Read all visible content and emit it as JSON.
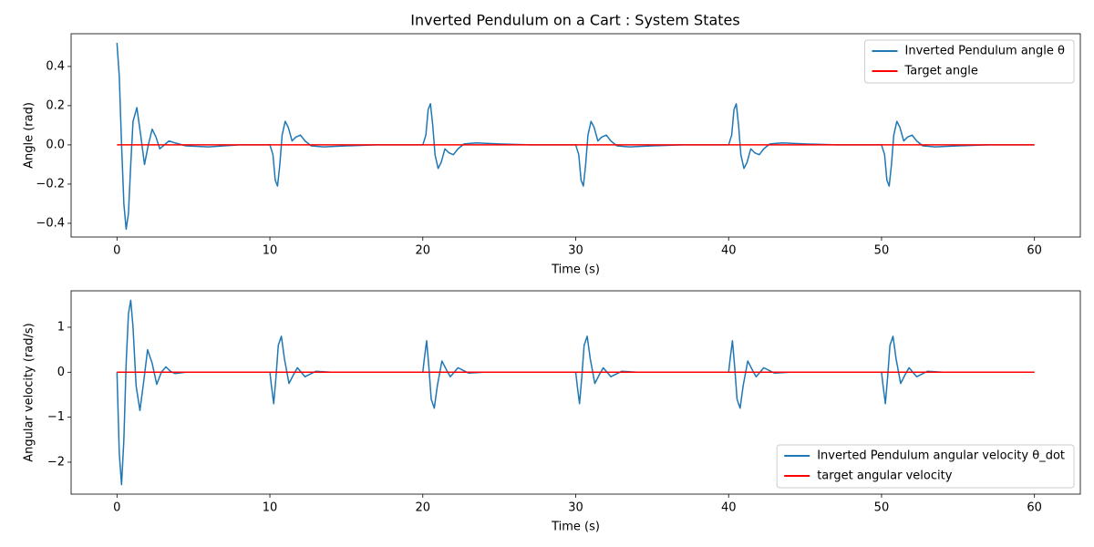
{
  "title": "Inverted Pendulum on a Cart : System States",
  "chart_data": [
    {
      "type": "line",
      "xlabel": "Time (s)",
      "ylabel": "Angle (rad)",
      "legend": "upper right",
      "xlim": [
        -3,
        63
      ],
      "ylim": [
        -0.47,
        0.567
      ],
      "xticks": [
        0,
        10,
        20,
        30,
        40,
        50,
        60
      ],
      "yticks": [
        {
          "value": -0.4,
          "label": "−0.4"
        },
        {
          "value": -0.2,
          "label": "−0.2"
        },
        {
          "value": 0,
          "label": "0.0"
        },
        {
          "value": 0.2,
          "label": "0.2"
        },
        {
          "value": 0.4,
          "label": "0.4"
        }
      ],
      "x": [
        0,
        0.15,
        0.3,
        0.45,
        0.6,
        0.75,
        0.9,
        1.05,
        1.3,
        1.55,
        1.8,
        2.05,
        2.3,
        2.55,
        2.8,
        3.1,
        3.4,
        3.8,
        4.5,
        6,
        8,
        10,
        10.2,
        10.35,
        10.5,
        10.65,
        10.8,
        11,
        11.2,
        11.45,
        11.7,
        12,
        12.3,
        12.7,
        13.5,
        15,
        17,
        20,
        20.2,
        20.35,
        20.5,
        20.65,
        20.8,
        21,
        21.2,
        21.45,
        21.7,
        22,
        22.3,
        22.7,
        23.5,
        25,
        27,
        30,
        30.2,
        30.35,
        30.5,
        30.65,
        30.8,
        31,
        31.2,
        31.45,
        31.7,
        32,
        32.3,
        32.7,
        33.5,
        35,
        37,
        40,
        40.2,
        40.35,
        40.5,
        40.65,
        40.8,
        41,
        41.2,
        41.45,
        41.7,
        42,
        42.3,
        42.7,
        43.5,
        45,
        47,
        50,
        50.2,
        50.35,
        50.5,
        50.65,
        50.8,
        51,
        51.2,
        51.45,
        51.7,
        52,
        52.3,
        52.7,
        53.5,
        55,
        57,
        60
      ],
      "series": [
        {
          "name": "Inverted Pendulum angle θ",
          "color": "#1f77b4",
          "values": [
            0.52,
            0.35,
            0,
            -0.3,
            -0.43,
            -0.35,
            -0.1,
            0.12,
            0.19,
            0.05,
            -0.1,
            0,
            0.08,
            0.04,
            -0.02,
            0,
            0.02,
            0.01,
            -0.005,
            -0.01,
            0,
            0,
            -0.05,
            -0.18,
            -0.21,
            -0.1,
            0.05,
            0.12,
            0.09,
            0.02,
            0.04,
            0.05,
            0.02,
            -0.005,
            -0.01,
            -0.005,
            0,
            0,
            0.05,
            0.18,
            0.21,
            0.1,
            -0.05,
            -0.12,
            -0.09,
            -0.02,
            -0.04,
            -0.05,
            -0.02,
            0.005,
            0.01,
            0.005,
            0,
            0,
            -0.05,
            -0.18,
            -0.21,
            -0.1,
            0.05,
            0.12,
            0.09,
            0.02,
            0.04,
            0.05,
            0.02,
            -0.005,
            -0.01,
            -0.005,
            0,
            0,
            0.05,
            0.18,
            0.21,
            0.1,
            -0.05,
            -0.12,
            -0.09,
            -0.02,
            -0.04,
            -0.05,
            -0.02,
            0.005,
            0.01,
            0.005,
            0,
            0,
            -0.05,
            -0.18,
            -0.21,
            -0.1,
            0.05,
            0.12,
            0.09,
            0.02,
            0.04,
            0.05,
            0.02,
            -0.005,
            -0.01,
            -0.005,
            0,
            0
          ]
        },
        {
          "name": "Target angle",
          "color": "#ff0000",
          "values": [
            0,
            0,
            0,
            0,
            0,
            0,
            0,
            0,
            0,
            0,
            0,
            0,
            0,
            0,
            0,
            0,
            0,
            0,
            0,
            0,
            0,
            0,
            0,
            0,
            0,
            0,
            0,
            0,
            0,
            0,
            0,
            0,
            0,
            0,
            0,
            0,
            0,
            0,
            0,
            0,
            0,
            0,
            0,
            0,
            0,
            0,
            0,
            0,
            0,
            0,
            0,
            0,
            0,
            0,
            0,
            0,
            0,
            0,
            0,
            0,
            0,
            0,
            0,
            0,
            0,
            0,
            0,
            0,
            0,
            0,
            0,
            0,
            0,
            0,
            0,
            0,
            0,
            0,
            0,
            0,
            0,
            0,
            0,
            0,
            0,
            0,
            0,
            0,
            0,
            0,
            0,
            0,
            0,
            0,
            0,
            0,
            0,
            0,
            0,
            0,
            0,
            0
          ]
        }
      ]
    },
    {
      "type": "line",
      "xlabel": "Time (s)",
      "ylabel": "Angular velocity (rad/s)",
      "legend": "lower right",
      "xlim": [
        -3,
        63
      ],
      "ylim": [
        -2.71,
        1.81
      ],
      "xticks": [
        0,
        10,
        20,
        30,
        40,
        50,
        60
      ],
      "yticks": [
        {
          "value": -2,
          "label": "−2"
        },
        {
          "value": -1,
          "label": "−1"
        },
        0,
        1
      ],
      "x": [
        0,
        0.15,
        0.3,
        0.45,
        0.6,
        0.75,
        0.9,
        1.05,
        1.25,
        1.5,
        1.75,
        2,
        2.3,
        2.6,
        2.9,
        3.2,
        3.5,
        3.8,
        4.5,
        6,
        8,
        10,
        10.1,
        10.25,
        10.4,
        10.55,
        10.75,
        10.95,
        11.25,
        11.55,
        11.8,
        12.3,
        13,
        14,
        16,
        20,
        20.1,
        20.25,
        20.4,
        20.55,
        20.75,
        20.95,
        21.25,
        21.55,
        21.8,
        22.3,
        23,
        24,
        26,
        30,
        30.1,
        30.25,
        30.4,
        30.55,
        30.75,
        30.95,
        31.25,
        31.55,
        31.8,
        32.3,
        33,
        34,
        36,
        40,
        40.1,
        40.25,
        40.4,
        40.55,
        40.75,
        40.95,
        41.25,
        41.55,
        41.8,
        42.3,
        43,
        44,
        46,
        50,
        50.1,
        50.25,
        50.4,
        50.55,
        50.75,
        50.95,
        51.25,
        51.55,
        51.8,
        52.3,
        53,
        54,
        56,
        60
      ],
      "series": [
        {
          "name": "Inverted Pendulum angular velocity θ_dot",
          "color": "#1f77b4",
          "values": [
            0,
            -1.8,
            -2.5,
            -1.5,
            0.2,
            1.3,
            1.6,
            1,
            -0.3,
            -0.85,
            -0.2,
            0.5,
            0.2,
            -0.27,
            0,
            0.12,
            0.02,
            -0.03,
            0,
            0,
            0,
            0,
            -0.3,
            -0.7,
            -0.1,
            0.6,
            0.8,
            0.3,
            -0.25,
            -0.05,
            0.1,
            -0.1,
            0.02,
            0,
            0,
            0,
            0.3,
            0.7,
            0.1,
            -0.6,
            -0.8,
            -0.3,
            0.25,
            0.05,
            -0.1,
            0.1,
            -0.02,
            0,
            0,
            0,
            -0.3,
            -0.7,
            -0.1,
            0.6,
            0.8,
            0.3,
            -0.25,
            -0.05,
            0.1,
            -0.1,
            0.02,
            0,
            0,
            0,
            0.3,
            0.7,
            0.1,
            -0.6,
            -0.8,
            -0.3,
            0.25,
            0.05,
            -0.1,
            0.1,
            -0.02,
            0,
            0,
            0,
            -0.3,
            -0.7,
            -0.1,
            0.6,
            0.8,
            0.3,
            -0.25,
            -0.05,
            0.1,
            -0.1,
            0.02,
            0,
            0,
            0
          ]
        },
        {
          "name": "target angular velocity",
          "color": "#ff0000",
          "values": [
            0,
            0,
            0,
            0,
            0,
            0,
            0,
            0,
            0,
            0,
            0,
            0,
            0,
            0,
            0,
            0,
            0,
            0,
            0,
            0,
            0,
            0,
            0,
            0,
            0,
            0,
            0,
            0,
            0,
            0,
            0,
            0,
            0,
            0,
            0,
            0,
            0,
            0,
            0,
            0,
            0,
            0,
            0,
            0,
            0,
            0,
            0,
            0,
            0,
            0,
            0,
            0,
            0,
            0,
            0,
            0,
            0,
            0,
            0,
            0,
            0,
            0,
            0,
            0,
            0,
            0,
            0,
            0,
            0,
            0,
            0,
            0,
            0,
            0,
            0,
            0,
            0,
            0,
            0,
            0,
            0,
            0,
            0,
            0,
            0,
            0,
            0,
            0,
            0,
            0,
            0,
            0
          ]
        }
      ]
    }
  ]
}
